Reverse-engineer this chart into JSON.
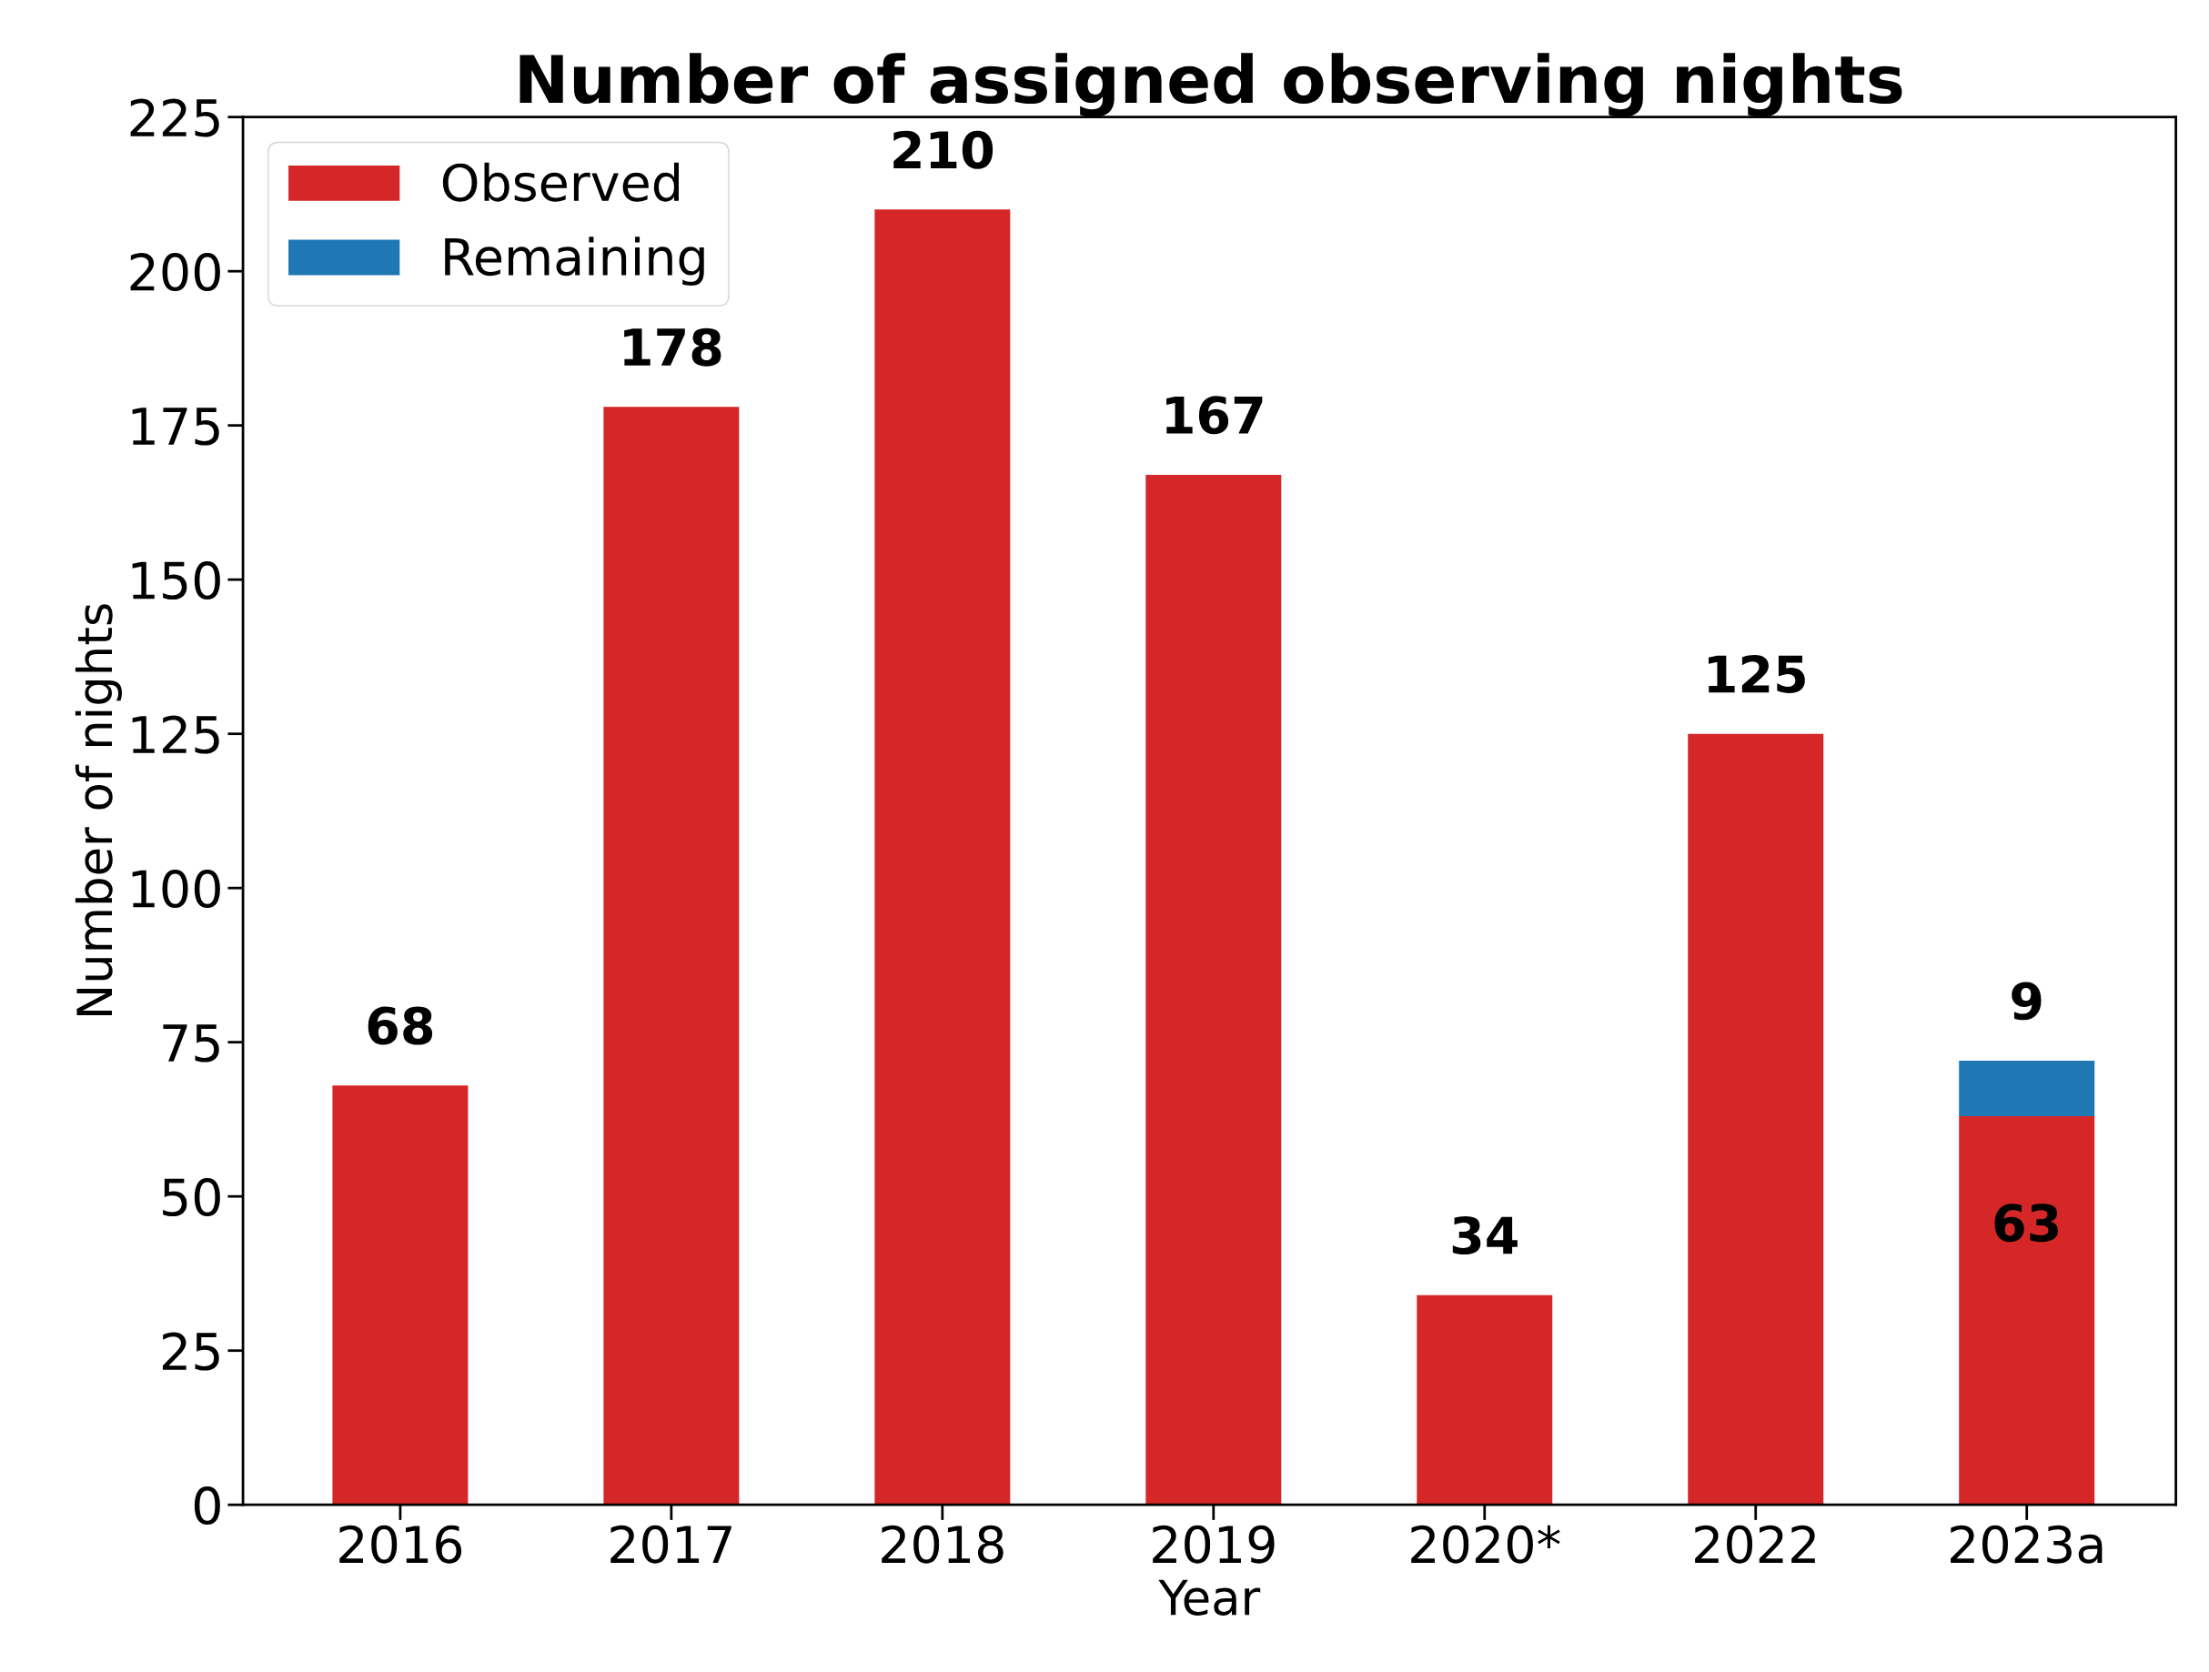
{
  "chart_data": {
    "type": "bar",
    "title": "Number of assigned observing nights",
    "xlabel": "Year",
    "ylabel": "Number of nights",
    "categories": [
      "2016",
      "2017",
      "2018",
      "2019",
      "2020*",
      "2022",
      "2023a"
    ],
    "stacked": true,
    "series": [
      {
        "name": "Observed",
        "color": "#d62728",
        "values": [
          68,
          178,
          210,
          167,
          34,
          125,
          63
        ],
        "value_labels": [
          "68",
          "178",
          "210",
          "167",
          "34",
          "125",
          "63"
        ]
      },
      {
        "name": "Remaining",
        "color": "#1f77b4",
        "values": [
          null,
          null,
          null,
          null,
          null,
          null,
          9
        ],
        "value_labels": [
          null,
          null,
          null,
          null,
          null,
          null,
          "9"
        ]
      }
    ],
    "ylim": [
      0,
      225
    ],
    "yticks": [
      0,
      25,
      50,
      75,
      100,
      125,
      150,
      175,
      200,
      225
    ],
    "legend": "top left",
    "grid": false
  }
}
